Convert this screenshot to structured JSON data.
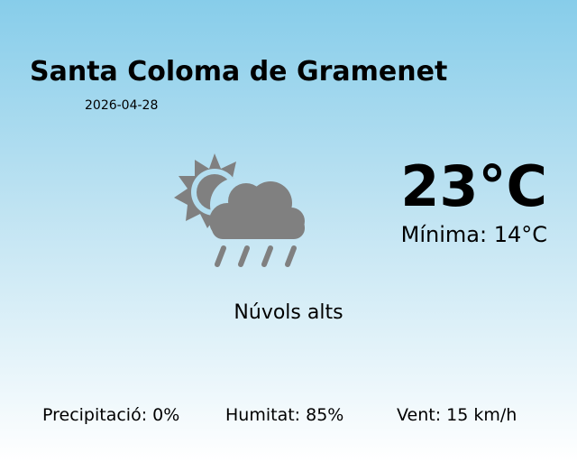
{
  "location": {
    "city": "Santa Coloma de Gramenet",
    "date": "2026-04-28"
  },
  "weather": {
    "temperature": "23°C",
    "minimum": "Mínima: 14°C",
    "condition": "Núvols alts",
    "icon": "sun-cloud-rain-icon",
    "icon_color": "#808080"
  },
  "stats": {
    "precipitation": "Precipitació: 0%",
    "humidity": "Humitat: 85%",
    "wind": "Vent: 15 km/h"
  }
}
